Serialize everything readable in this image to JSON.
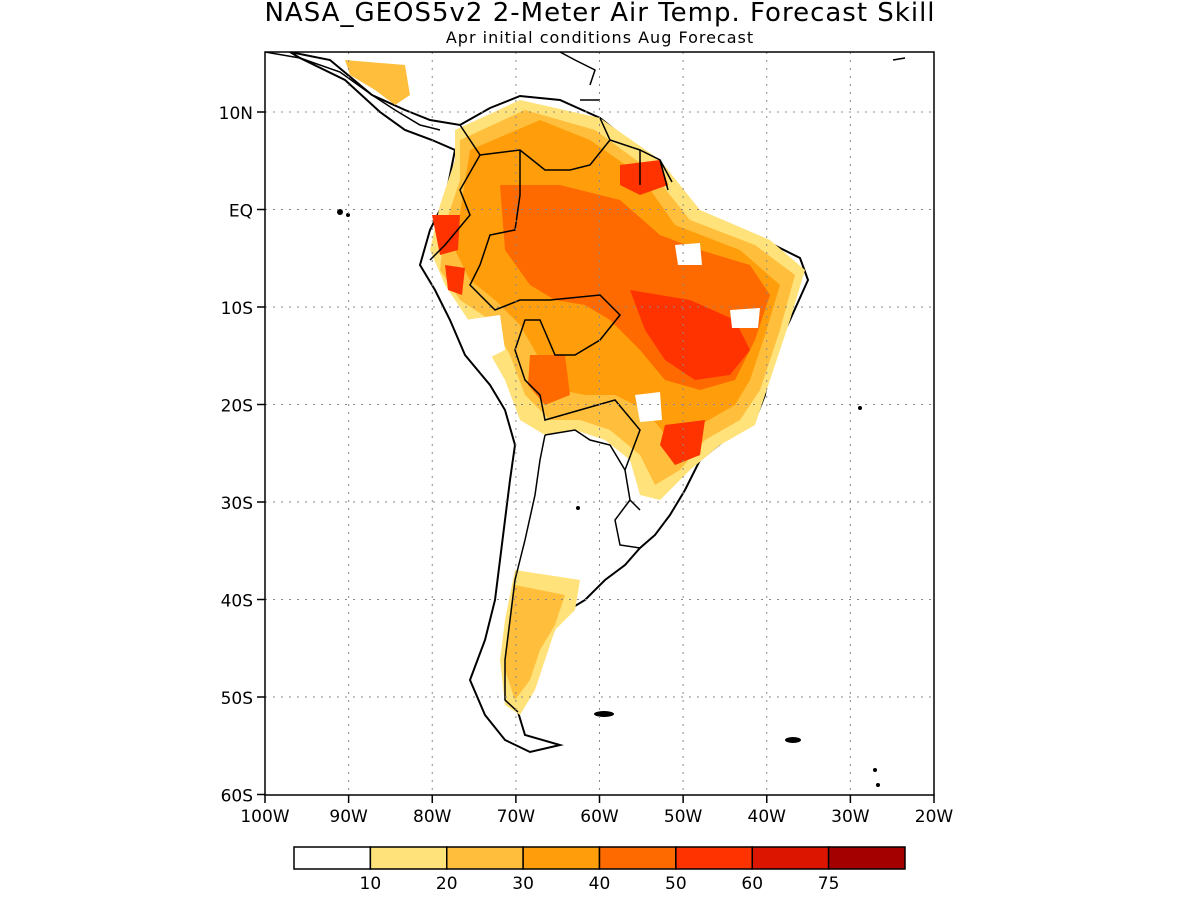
{
  "header": {
    "title": "NASA_GEOS5v2 2-Meter Air Temp. Forecast Skill",
    "subtitle": "Apr initial conditions  Aug Forecast"
  },
  "map": {
    "region": "South America",
    "lat_ticks": [
      "10N",
      "EQ",
      "10S",
      "20S",
      "30S",
      "40S",
      "50S",
      "60S"
    ],
    "lon_ticks": [
      "100W",
      "90W",
      "80W",
      "70W",
      "60W",
      "50W",
      "40W",
      "30W",
      "20W"
    ],
    "lon_range": [
      -100,
      -20
    ],
    "lat_range": [
      -60,
      15
    ],
    "grid": true
  },
  "colorbar": {
    "boundaries": [
      "10",
      "20",
      "30",
      "40",
      "50",
      "60",
      "75"
    ],
    "colors": [
      "#ffffff",
      "#ffe27a",
      "#ffbf3d",
      "#ff9e0a",
      "#ff6a00",
      "#ff3300",
      "#dc1500",
      "#a50000"
    ]
  },
  "chart_data": {
    "type": "heatmap",
    "title": "NASA_GEOS5v2 2-Meter Air Temp. Forecast Skill",
    "subtitle": "Apr initial conditions  Aug Forecast",
    "xlim": [
      -100,
      -20
    ],
    "ylim": [
      -60,
      15
    ],
    "x_ticks": [
      "100W",
      "90W",
      "80W",
      "70W",
      "60W",
      "50W",
      "40W",
      "30W",
      "20W"
    ],
    "y_ticks": [
      "10N",
      "EQ",
      "10S",
      "20S",
      "30S",
      "40S",
      "50S",
      "60S"
    ],
    "levels": [
      10,
      20,
      30,
      40,
      50,
      60,
      75
    ],
    "regions": [
      {
        "lon": -50,
        "lat": -12,
        "skill": 55
      },
      {
        "lon": -52,
        "lat": -3,
        "skill": 50
      },
      {
        "lon": -60,
        "lat": -2,
        "skill": 45
      },
      {
        "lon": -55,
        "lat": 5,
        "skill": 60
      },
      {
        "lon": -40,
        "lat": -6,
        "skill": 45
      },
      {
        "lon": -47,
        "lat": -22,
        "skill": 55
      },
      {
        "lon": -64,
        "lat": -17,
        "skill": 40
      },
      {
        "lon": -77,
        "lat": -2,
        "skill": 50
      },
      {
        "lon": -70,
        "lat": 5,
        "skill": 30
      },
      {
        "lon": -68,
        "lat": -45,
        "skill": 25
      }
    ]
  }
}
